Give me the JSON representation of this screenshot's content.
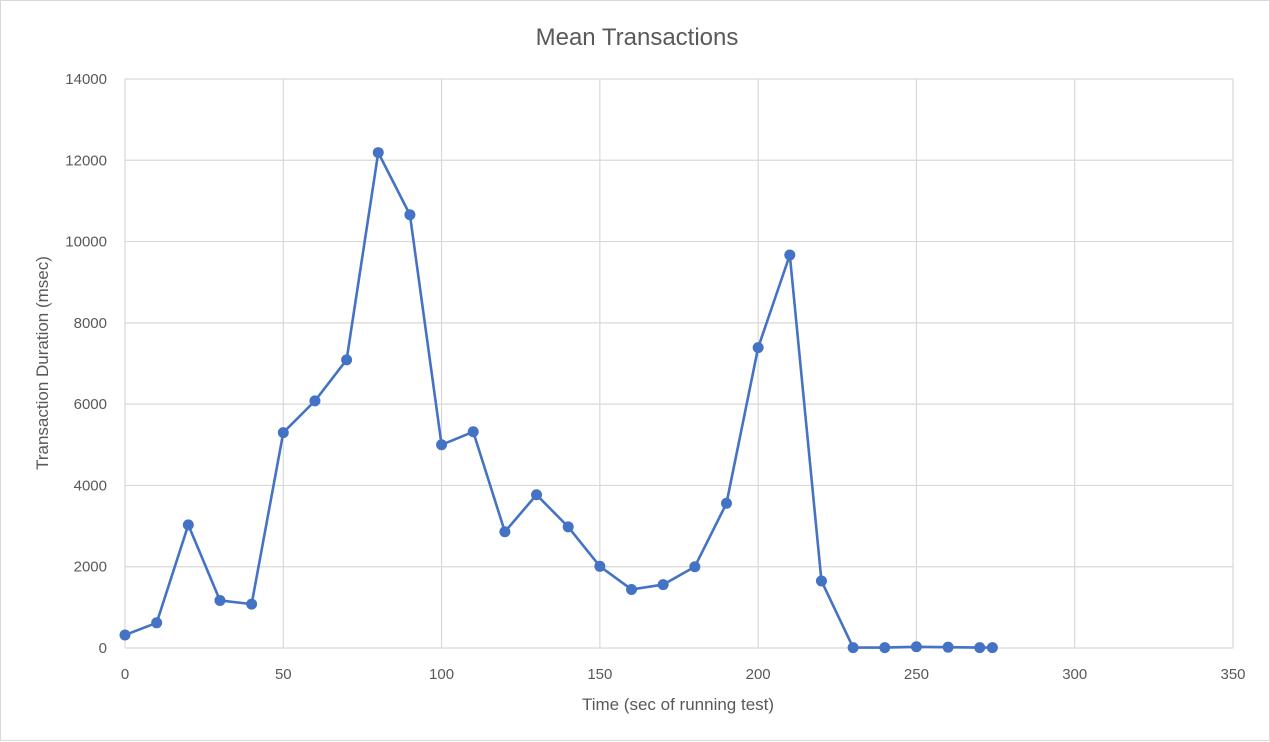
{
  "chart_data": {
    "type": "scatter",
    "title": "Mean Transactions",
    "xlabel": "Time (sec of running test)",
    "ylabel": "Transaction Duration (msec)",
    "xlim": [
      0,
      350
    ],
    "ylim": [
      0,
      14000
    ],
    "x_ticks": [
      0,
      50,
      100,
      150,
      200,
      250,
      300,
      350
    ],
    "y_ticks": [
      0,
      2000,
      4000,
      6000,
      8000,
      10000,
      12000,
      14000
    ],
    "grid": true,
    "legend": "none",
    "series": [
      {
        "color": "#4472c4",
        "x": [
          0,
          10,
          20,
          30,
          40,
          50,
          60,
          70,
          80,
          90,
          100,
          110,
          120,
          130,
          140,
          150,
          160,
          170,
          180,
          190,
          200,
          210,
          220,
          230,
          240,
          250,
          260,
          270,
          274
        ],
        "y": [
          320,
          620,
          3030,
          1170,
          1080,
          5300,
          6080,
          7090,
          12190,
          10660,
          5000,
          5320,
          2860,
          3770,
          2980,
          2010,
          1440,
          1560,
          2000,
          3560,
          7390,
          9670,
          1650,
          10,
          10,
          30,
          20,
          10,
          10
        ]
      }
    ]
  }
}
